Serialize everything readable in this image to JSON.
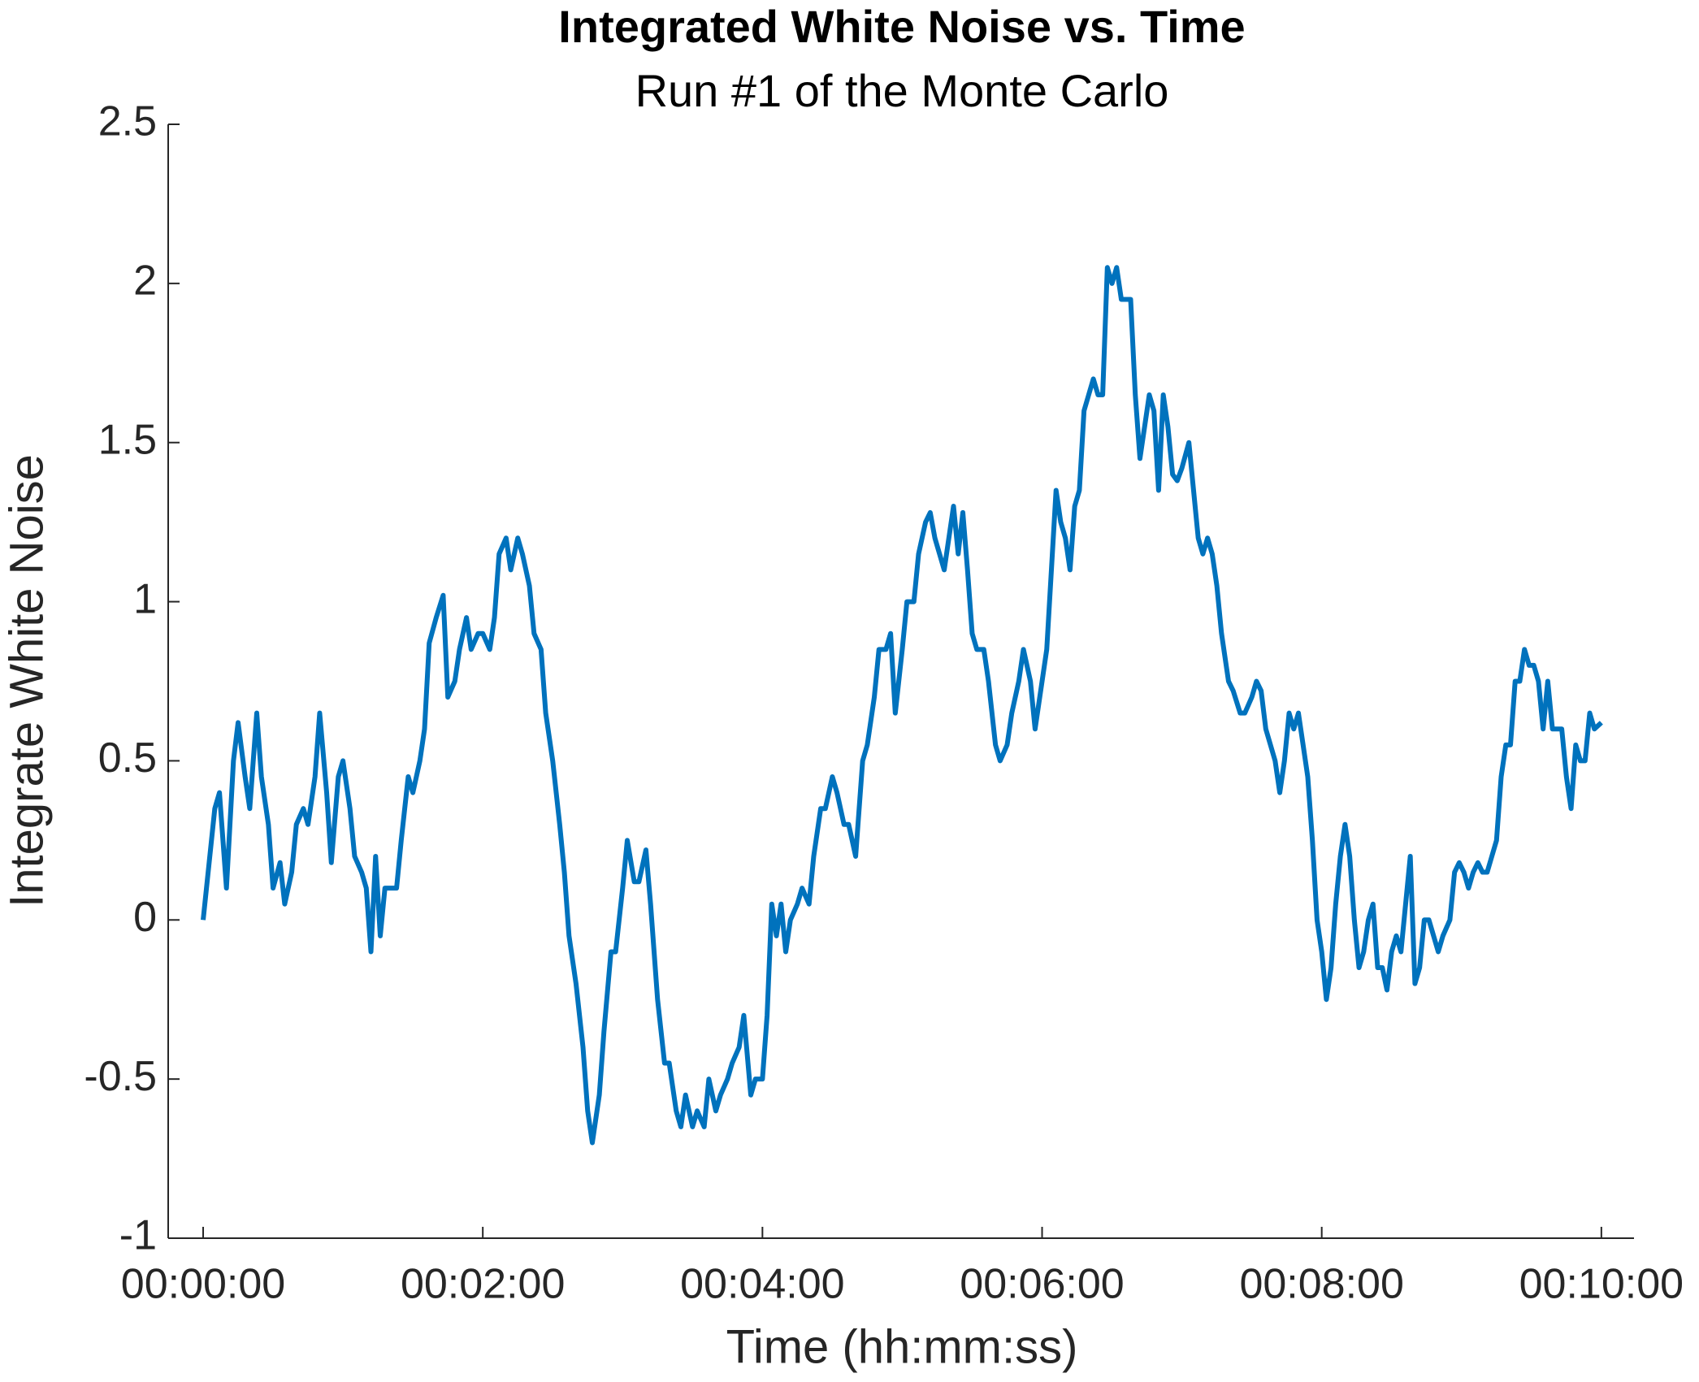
{
  "chart_data": {
    "type": "line",
    "title": "Integrated White Noise vs. Time",
    "subtitle": "Run #1 of the Monte Carlo",
    "xlabel": "Time (hh:mm:ss)",
    "ylabel": "Integrate White Noise",
    "xlim": [
      -15,
      614
    ],
    "ylim": [
      -1,
      2.5
    ],
    "xticks": [
      {
        "value": 0,
        "label": "00:00:00"
      },
      {
        "value": 120,
        "label": "00:02:00"
      },
      {
        "value": 240,
        "label": "00:04:00"
      },
      {
        "value": 360,
        "label": "00:06:00"
      },
      {
        "value": 480,
        "label": "00:08:00"
      },
      {
        "value": 600,
        "label": "00:10:00"
      }
    ],
    "yticks": [
      -1,
      {
        "value": -0.5,
        "label": "-0.5"
      },
      0,
      0.5,
      1,
      1.5,
      2,
      2.5
    ],
    "grid": false,
    "x": [
      0,
      5,
      7,
      10,
      13,
      15,
      18,
      20,
      23,
      25,
      28,
      30,
      33,
      35,
      38,
      40,
      43,
      45,
      48,
      50,
      53,
      55,
      58,
      60,
      63,
      65,
      68,
      70,
      72,
      74,
      76,
      78,
      80,
      83,
      85,
      88,
      90,
      93,
      95,
      97,
      100,
      103,
      105,
      108,
      110,
      113,
      115,
      118,
      120,
      123,
      125,
      127,
      130,
      132,
      135,
      137,
      140,
      142,
      145,
      147,
      150,
      153,
      155,
      157,
      160,
      163,
      165,
      167,
      170,
      172,
      175,
      177,
      180,
      182,
      185,
      187,
      190,
      192,
      195,
      198,
      200,
      203,
      205,
      207,
      210,
      212,
      215,
      217,
      220,
      222,
      225,
      227,
      230,
      232,
      235,
      237,
      240,
      242,
      244,
      246,
      248,
      250,
      252,
      255,
      257,
      260,
      262,
      265,
      267,
      270,
      272,
      275,
      277,
      280,
      283,
      285,
      288,
      290,
      293,
      295,
      297,
      300,
      302,
      305,
      307,
      310,
      312,
      314,
      316,
      318,
      320,
      322,
      324,
      326,
      328,
      330,
      332,
      335,
      337,
      340,
      342,
      345,
      347,
      350,
      352,
      355,
      357,
      360,
      362,
      364,
      366,
      368,
      370,
      372,
      374,
      376,
      378,
      380,
      382,
      384,
      386,
      388,
      390,
      392,
      394,
      396,
      398,
      400,
      402,
      404,
      406,
      408,
      410,
      412,
      414,
      416,
      418,
      420,
      423,
      425,
      427,
      429,
      431,
      433,
      435,
      437,
      440,
      442,
      445,
      447,
      450,
      452,
      454,
      456,
      458,
      460,
      462,
      464,
      466,
      468,
      470,
      472,
      474,
      476,
      478,
      480,
      482,
      484,
      486,
      488,
      490,
      492,
      494,
      496,
      498,
      500,
      502,
      504,
      506,
      508,
      510,
      512,
      514,
      516,
      518,
      520,
      522,
      524,
      526,
      528,
      530,
      532,
      535,
      537,
      539,
      541,
      543,
      545,
      547,
      549,
      551,
      553,
      555,
      557,
      559,
      561,
      563,
      565,
      567,
      569,
      571,
      573,
      575,
      577,
      579,
      581,
      583,
      585,
      587,
      589,
      591,
      593,
      595,
      597,
      600
    ],
    "series": [
      {
        "name": "Integrated White Noise",
        "color": "#0072BD",
        "values": [
          0,
          0.35,
          0.4,
          0.1,
          0.5,
          0.62,
          0.45,
          0.35,
          0.65,
          0.45,
          0.3,
          0.1,
          0.18,
          0.05,
          0.15,
          0.3,
          0.35,
          0.3,
          0.45,
          0.65,
          0.4,
          0.18,
          0.45,
          0.5,
          0.35,
          0.2,
          0.15,
          0.1,
          -0.1,
          0.2,
          -0.05,
          0.1,
          0.1,
          0.1,
          0.25,
          0.45,
          0.4,
          0.5,
          0.6,
          0.87,
          0.95,
          1.02,
          0.7,
          0.75,
          0.85,
          0.95,
          0.85,
          0.9,
          0.9,
          0.85,
          0.95,
          1.15,
          1.2,
          1.1,
          1.2,
          1.15,
          1.05,
          0.9,
          0.85,
          0.65,
          0.5,
          0.3,
          0.15,
          -0.05,
          -0.2,
          -0.4,
          -0.6,
          -0.7,
          -0.55,
          -0.35,
          -0.1,
          -0.1,
          0.1,
          0.25,
          0.12,
          0.12,
          0.22,
          0.05,
          -0.25,
          -0.45,
          -0.45,
          -0.6,
          -0.65,
          -0.55,
          -0.65,
          -0.6,
          -0.65,
          -0.5,
          -0.6,
          -0.55,
          -0.5,
          -0.45,
          -0.4,
          -0.3,
          -0.55,
          -0.5,
          -0.5,
          -0.3,
          0.05,
          -0.05,
          0.05,
          -0.1,
          0,
          0.05,
          0.1,
          0.05,
          0.2,
          0.35,
          0.35,
          0.45,
          0.4,
          0.3,
          0.3,
          0.2,
          0.5,
          0.55,
          0.7,
          0.85,
          0.85,
          0.9,
          0.65,
          0.85,
          1,
          1,
          1.15,
          1.25,
          1.28,
          1.2,
          1.15,
          1.1,
          1.2,
          1.3,
          1.15,
          1.28,
          1.1,
          0.9,
          0.85,
          0.85,
          0.75,
          0.55,
          0.5,
          0.55,
          0.65,
          0.75,
          0.85,
          0.75,
          0.6,
          0.75,
          0.85,
          1.1,
          1.35,
          1.25,
          1.2,
          1.1,
          1.3,
          1.35,
          1.6,
          1.65,
          1.7,
          1.65,
          1.65,
          2.05,
          2,
          2.05,
          1.95,
          1.95,
          1.95,
          1.65,
          1.45,
          1.55,
          1.65,
          1.6,
          1.35,
          1.65,
          1.55,
          1.4,
          1.38,
          1.42,
          1.5,
          1.35,
          1.2,
          1.15,
          1.2,
          1.15,
          1.05,
          0.9,
          0.75,
          0.72,
          0.65,
          0.65,
          0.7,
          0.75,
          0.72,
          0.6,
          0.55,
          0.5,
          0.4,
          0.5,
          0.65,
          0.6,
          0.65,
          0.55,
          0.45,
          0.25,
          0,
          -0.1,
          -0.25,
          -0.15,
          0.05,
          0.2,
          0.3,
          0.2,
          0,
          -0.15,
          -0.1,
          0,
          0.05,
          -0.15,
          -0.15,
          -0.22,
          -0.1,
          -0.05,
          -0.1,
          0.05,
          0.2,
          -0.2,
          -0.15,
          0,
          0,
          -0.05,
          -0.1,
          -0.05,
          0,
          0.15,
          0.18,
          0.15,
          0.1,
          0.15,
          0.18,
          0.15,
          0.15,
          0.2,
          0.25,
          0.45,
          0.55,
          0.55,
          0.75,
          0.75,
          0.85,
          0.8,
          0.8,
          0.75,
          0.6,
          0.75,
          0.6,
          0.6,
          0.6,
          0.45,
          0.35,
          0.55,
          0.5,
          0.5,
          0.65,
          0.6,
          0.62
        ]
      }
    ]
  }
}
